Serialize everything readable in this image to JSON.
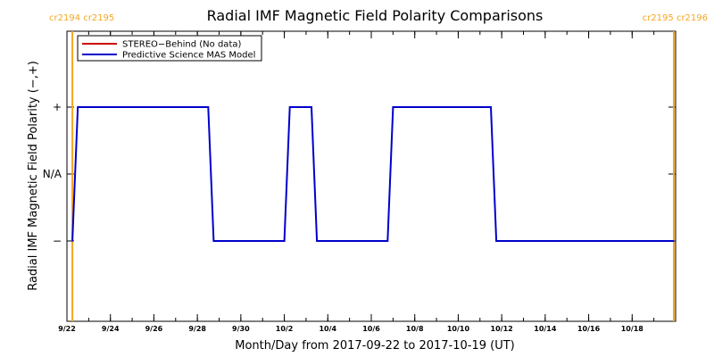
{
  "chart_data": {
    "type": "line",
    "title": "Radial IMF Magnetic Field Polarity Comparisons",
    "xlabel": "Month/Day from 2017-09-22 to 2017-10-19 (UT)",
    "ylabel": "Radial IMF Magnetic Field Polarity (−,+)",
    "xlim": [
      "2017-09-22T00:00",
      "2017-10-20T00:00"
    ],
    "x_ticks": [
      "9/22",
      "9/24",
      "9/26",
      "9/28",
      "9/30",
      "10/2",
      "10/4",
      "10/6",
      "10/8",
      "10/10",
      "10/12",
      "10/14",
      "10/16",
      "10/18"
    ],
    "x_tick_dates": [
      "2017-09-22",
      "2017-09-24",
      "2017-09-26",
      "2017-09-28",
      "2017-09-30",
      "2017-10-02",
      "2017-10-04",
      "2017-10-06",
      "2017-10-08",
      "2017-10-10",
      "2017-10-12",
      "2017-10-14",
      "2017-10-16",
      "2017-10-18"
    ],
    "y_ticks": [
      "+",
      "N/A",
      "−"
    ],
    "y_categories": [
      "−",
      "N/A",
      "+"
    ],
    "legend_position": "top-left",
    "series": [
      {
        "name": "STEREO−Behind (No data)",
        "color": "#cc0000",
        "points": []
      },
      {
        "name": "Predictive Science MAS Model",
        "color": "#0000cc",
        "points": [
          {
            "x": "2017-09-22T06:00",
            "y": "−"
          },
          {
            "x": "2017-09-22T12:00",
            "y": "+"
          },
          {
            "x": "2017-09-28T12:00",
            "y": "+"
          },
          {
            "x": "2017-09-28T18:00",
            "y": "−"
          },
          {
            "x": "2017-10-02T00:00",
            "y": "−"
          },
          {
            "x": "2017-10-02T06:00",
            "y": "+"
          },
          {
            "x": "2017-10-03T06:00",
            "y": "+"
          },
          {
            "x": "2017-10-03T12:00",
            "y": "−"
          },
          {
            "x": "2017-10-06T18:00",
            "y": "−"
          },
          {
            "x": "2017-10-07T00:00",
            "y": "+"
          },
          {
            "x": "2017-10-11T12:00",
            "y": "+"
          },
          {
            "x": "2017-10-11T18:00",
            "y": "−"
          },
          {
            "x": "2017-10-19T22:00",
            "y": "−"
          }
        ]
      }
    ],
    "carrington_markers": [
      {
        "x": "2017-09-22T06:00",
        "label": "cr2194 cr2195",
        "color": "#f5a623",
        "side": "left"
      },
      {
        "x": "2017-10-19T22:00",
        "label": "cr2195 cr2196",
        "color": "#f5a623",
        "side": "right"
      }
    ]
  }
}
